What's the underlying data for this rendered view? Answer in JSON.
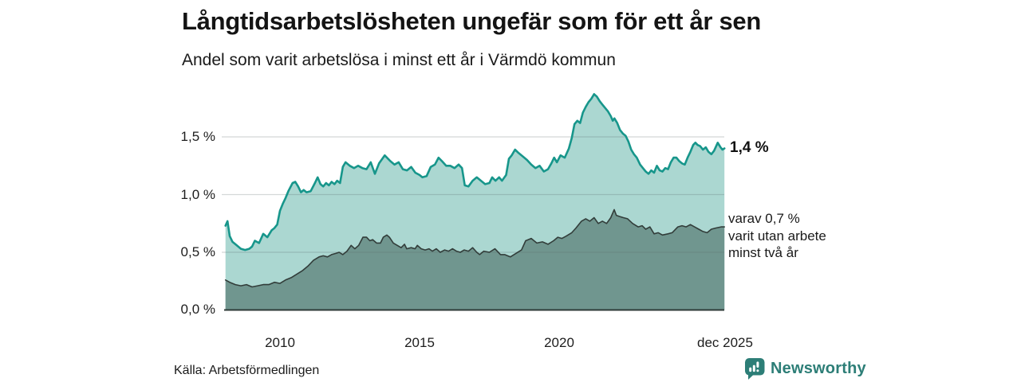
{
  "header": {
    "title": "Långtidsarbetslösheten ungefär som för ett år sen",
    "subtitle": "Andel som varit arbetslösa i minst ett år i Värmdö kommun"
  },
  "annotations": {
    "end_value": "1,4 %",
    "secondary_lines": [
      "varav 0,7 %",
      "varit utan arbete",
      "minst två år"
    ]
  },
  "footer": {
    "source": "Källa: Arbetsförmedlingen",
    "brand": "Newsworthy"
  },
  "colors": {
    "accent_line": "#17968b",
    "fill_light": "#abd7d1",
    "fill_dark": "#70968f",
    "dark_line": "#323d3a",
    "baseline": "#2e3a37",
    "grid": "#5a6a68",
    "brand": "#2d7e77"
  },
  "chart_data": {
    "type": "area",
    "title": "Långtidsarbetslösheten ungefär som för ett år sen",
    "subtitle": "Andel som varit arbetslösa i minst ett år i Värmdö kommun",
    "xlabel": "",
    "ylabel": "%",
    "x_range": [
      2008.0,
      2025.92
    ],
    "y_range": [
      0,
      1.95
    ],
    "grid": true,
    "legend_position": "none",
    "y_tick_labels": [
      "1,5 %",
      "1,0 %",
      "0,5 %",
      "0,0 %"
    ],
    "y_grid_values": [
      0.5,
      1.0,
      1.5
    ],
    "x_tick_labels": [
      "2010",
      "2015",
      "2020",
      "dec 2025"
    ],
    "x_tick_years": [
      2010,
      2015,
      2020,
      2025.92
    ],
    "series": [
      {
        "name": "Andel arbetslösa minst ett år",
        "end_value_pct": 1.4,
        "color": "#17968b",
        "fill": "#abd7d1",
        "points": [
          [
            2008.05,
            0.73
          ],
          [
            2008.12,
            0.77
          ],
          [
            2008.2,
            0.64
          ],
          [
            2008.3,
            0.59
          ],
          [
            2008.45,
            0.56
          ],
          [
            2008.6,
            0.53
          ],
          [
            2008.75,
            0.52
          ],
          [
            2008.9,
            0.53
          ],
          [
            2009.0,
            0.55
          ],
          [
            2009.1,
            0.6
          ],
          [
            2009.25,
            0.58
          ],
          [
            2009.4,
            0.66
          ],
          [
            2009.55,
            0.63
          ],
          [
            2009.7,
            0.69
          ],
          [
            2009.8,
            0.71
          ],
          [
            2009.9,
            0.74
          ],
          [
            2010.0,
            0.86
          ],
          [
            2010.1,
            0.92
          ],
          [
            2010.2,
            0.97
          ],
          [
            2010.3,
            1.03
          ],
          [
            2010.45,
            1.1
          ],
          [
            2010.55,
            1.11
          ],
          [
            2010.65,
            1.07
          ],
          [
            2010.75,
            1.02
          ],
          [
            2010.85,
            1.04
          ],
          [
            2010.95,
            1.02
          ],
          [
            2011.1,
            1.03
          ],
          [
            2011.25,
            1.1
          ],
          [
            2011.35,
            1.15
          ],
          [
            2011.45,
            1.09
          ],
          [
            2011.55,
            1.07
          ],
          [
            2011.65,
            1.1
          ],
          [
            2011.75,
            1.08
          ],
          [
            2011.85,
            1.11
          ],
          [
            2011.95,
            1.09
          ],
          [
            2012.05,
            1.12
          ],
          [
            2012.15,
            1.1
          ],
          [
            2012.25,
            1.24
          ],
          [
            2012.35,
            1.28
          ],
          [
            2012.5,
            1.25
          ],
          [
            2012.65,
            1.23
          ],
          [
            2012.8,
            1.25
          ],
          [
            2012.95,
            1.23
          ],
          [
            2013.1,
            1.22
          ],
          [
            2013.25,
            1.28
          ],
          [
            2013.4,
            1.18
          ],
          [
            2013.55,
            1.27
          ],
          [
            2013.75,
            1.34
          ],
          [
            2013.95,
            1.29
          ],
          [
            2014.1,
            1.26
          ],
          [
            2014.25,
            1.28
          ],
          [
            2014.4,
            1.22
          ],
          [
            2014.55,
            1.21
          ],
          [
            2014.7,
            1.24
          ],
          [
            2014.85,
            1.19
          ],
          [
            2015.0,
            1.17
          ],
          [
            2015.1,
            1.15
          ],
          [
            2015.25,
            1.16
          ],
          [
            2015.4,
            1.24
          ],
          [
            2015.55,
            1.26
          ],
          [
            2015.68,
            1.32
          ],
          [
            2015.8,
            1.29
          ],
          [
            2015.95,
            1.25
          ],
          [
            2016.1,
            1.25
          ],
          [
            2016.25,
            1.23
          ],
          [
            2016.4,
            1.26
          ],
          [
            2016.52,
            1.23
          ],
          [
            2016.62,
            1.08
          ],
          [
            2016.75,
            1.07
          ],
          [
            2016.9,
            1.12
          ],
          [
            2017.05,
            1.15
          ],
          [
            2017.2,
            1.12
          ],
          [
            2017.35,
            1.09
          ],
          [
            2017.5,
            1.1
          ],
          [
            2017.6,
            1.15
          ],
          [
            2017.72,
            1.12
          ],
          [
            2017.85,
            1.15
          ],
          [
            2017.95,
            1.12
          ],
          [
            2018.1,
            1.17
          ],
          [
            2018.2,
            1.31
          ],
          [
            2018.3,
            1.34
          ],
          [
            2018.42,
            1.39
          ],
          [
            2018.55,
            1.36
          ],
          [
            2018.7,
            1.33
          ],
          [
            2018.85,
            1.3
          ],
          [
            2019.0,
            1.26
          ],
          [
            2019.15,
            1.23
          ],
          [
            2019.3,
            1.25
          ],
          [
            2019.45,
            1.2
          ],
          [
            2019.6,
            1.22
          ],
          [
            2019.72,
            1.27
          ],
          [
            2019.82,
            1.32
          ],
          [
            2019.92,
            1.28
          ],
          [
            2020.05,
            1.34
          ],
          [
            2020.2,
            1.32
          ],
          [
            2020.35,
            1.4
          ],
          [
            2020.45,
            1.49
          ],
          [
            2020.55,
            1.61
          ],
          [
            2020.65,
            1.64
          ],
          [
            2020.75,
            1.62
          ],
          [
            2020.85,
            1.71
          ],
          [
            2020.95,
            1.76
          ],
          [
            2021.05,
            1.8
          ],
          [
            2021.15,
            1.83
          ],
          [
            2021.25,
            1.87
          ],
          [
            2021.35,
            1.85
          ],
          [
            2021.45,
            1.81
          ],
          [
            2021.55,
            1.78
          ],
          [
            2021.65,
            1.75
          ],
          [
            2021.75,
            1.72
          ],
          [
            2021.85,
            1.68
          ],
          [
            2021.92,
            1.64
          ],
          [
            2021.98,
            1.66
          ],
          [
            2022.08,
            1.62
          ],
          [
            2022.18,
            1.56
          ],
          [
            2022.28,
            1.53
          ],
          [
            2022.38,
            1.51
          ],
          [
            2022.48,
            1.46
          ],
          [
            2022.58,
            1.39
          ],
          [
            2022.68,
            1.35
          ],
          [
            2022.78,
            1.32
          ],
          [
            2022.9,
            1.26
          ],
          [
            2023.0,
            1.23
          ],
          [
            2023.1,
            1.2
          ],
          [
            2023.2,
            1.18
          ],
          [
            2023.3,
            1.21
          ],
          [
            2023.4,
            1.19
          ],
          [
            2023.5,
            1.25
          ],
          [
            2023.6,
            1.21
          ],
          [
            2023.7,
            1.2
          ],
          [
            2023.8,
            1.23
          ],
          [
            2023.9,
            1.22
          ],
          [
            2024.0,
            1.28
          ],
          [
            2024.1,
            1.32
          ],
          [
            2024.2,
            1.32
          ],
          [
            2024.3,
            1.29
          ],
          [
            2024.4,
            1.27
          ],
          [
            2024.5,
            1.26
          ],
          [
            2024.6,
            1.32
          ],
          [
            2024.7,
            1.37
          ],
          [
            2024.8,
            1.43
          ],
          [
            2024.88,
            1.45
          ],
          [
            2024.96,
            1.43
          ],
          [
            2025.05,
            1.42
          ],
          [
            2025.15,
            1.39
          ],
          [
            2025.25,
            1.41
          ],
          [
            2025.35,
            1.37
          ],
          [
            2025.45,
            1.35
          ],
          [
            2025.55,
            1.38
          ],
          [
            2025.68,
            1.45
          ],
          [
            2025.78,
            1.41
          ],
          [
            2025.85,
            1.39
          ],
          [
            2025.92,
            1.4
          ]
        ]
      },
      {
        "name": "varav utan arbete minst två år",
        "end_value_pct": 0.7,
        "color": "#323d3a",
        "fill": "#70968f",
        "points": [
          [
            2008.05,
            0.26
          ],
          [
            2008.2,
            0.24
          ],
          [
            2008.4,
            0.22
          ],
          [
            2008.6,
            0.21
          ],
          [
            2008.8,
            0.22
          ],
          [
            2009.0,
            0.2
          ],
          [
            2009.2,
            0.21
          ],
          [
            2009.4,
            0.22
          ],
          [
            2009.6,
            0.22
          ],
          [
            2009.8,
            0.24
          ],
          [
            2010.0,
            0.23
          ],
          [
            2010.2,
            0.26
          ],
          [
            2010.4,
            0.28
          ],
          [
            2010.6,
            0.31
          ],
          [
            2010.8,
            0.34
          ],
          [
            2011.0,
            0.38
          ],
          [
            2011.2,
            0.43
          ],
          [
            2011.4,
            0.46
          ],
          [
            2011.55,
            0.47
          ],
          [
            2011.7,
            0.46
          ],
          [
            2011.85,
            0.48
          ],
          [
            2012.0,
            0.49
          ],
          [
            2012.12,
            0.5
          ],
          [
            2012.25,
            0.48
          ],
          [
            2012.4,
            0.51
          ],
          [
            2012.55,
            0.56
          ],
          [
            2012.68,
            0.53
          ],
          [
            2012.82,
            0.56
          ],
          [
            2012.97,
            0.63
          ],
          [
            2013.1,
            0.63
          ],
          [
            2013.22,
            0.6
          ],
          [
            2013.32,
            0.61
          ],
          [
            2013.46,
            0.58
          ],
          [
            2013.6,
            0.58
          ],
          [
            2013.7,
            0.63
          ],
          [
            2013.83,
            0.65
          ],
          [
            2013.92,
            0.63
          ],
          [
            2014.06,
            0.58
          ],
          [
            2014.2,
            0.56
          ],
          [
            2014.34,
            0.54
          ],
          [
            2014.46,
            0.57
          ],
          [
            2014.54,
            0.53
          ],
          [
            2014.7,
            0.54
          ],
          [
            2014.84,
            0.53
          ],
          [
            2014.92,
            0.56
          ],
          [
            2015.06,
            0.53
          ],
          [
            2015.2,
            0.52
          ],
          [
            2015.34,
            0.53
          ],
          [
            2015.46,
            0.51
          ],
          [
            2015.6,
            0.53
          ],
          [
            2015.74,
            0.5
          ],
          [
            2015.9,
            0.52
          ],
          [
            2016.04,
            0.51
          ],
          [
            2016.18,
            0.53
          ],
          [
            2016.32,
            0.51
          ],
          [
            2016.46,
            0.5
          ],
          [
            2016.6,
            0.52
          ],
          [
            2016.75,
            0.51
          ],
          [
            2016.9,
            0.54
          ],
          [
            2017.05,
            0.5
          ],
          [
            2017.15,
            0.48
          ],
          [
            2017.3,
            0.51
          ],
          [
            2017.5,
            0.5
          ],
          [
            2017.7,
            0.53
          ],
          [
            2017.9,
            0.48
          ],
          [
            2018.05,
            0.48
          ],
          [
            2018.25,
            0.46
          ],
          [
            2018.45,
            0.49
          ],
          [
            2018.65,
            0.52
          ],
          [
            2018.8,
            0.6
          ],
          [
            2019.0,
            0.62
          ],
          [
            2019.2,
            0.58
          ],
          [
            2019.4,
            0.59
          ],
          [
            2019.6,
            0.57
          ],
          [
            2019.8,
            0.6
          ],
          [
            2019.95,
            0.63
          ],
          [
            2020.1,
            0.62
          ],
          [
            2020.25,
            0.64
          ],
          [
            2020.45,
            0.67
          ],
          [
            2020.6,
            0.71
          ],
          [
            2020.8,
            0.77
          ],
          [
            2020.95,
            0.79
          ],
          [
            2021.1,
            0.77
          ],
          [
            2021.25,
            0.8
          ],
          [
            2021.4,
            0.75
          ],
          [
            2021.55,
            0.77
          ],
          [
            2021.7,
            0.75
          ],
          [
            2021.85,
            0.8
          ],
          [
            2021.97,
            0.87
          ],
          [
            2022.05,
            0.82
          ],
          [
            2022.17,
            0.81
          ],
          [
            2022.3,
            0.8
          ],
          [
            2022.45,
            0.79
          ],
          [
            2022.63,
            0.75
          ],
          [
            2022.83,
            0.72
          ],
          [
            2022.97,
            0.73
          ],
          [
            2023.1,
            0.7
          ],
          [
            2023.25,
            0.72
          ],
          [
            2023.4,
            0.66
          ],
          [
            2023.55,
            0.67
          ],
          [
            2023.7,
            0.65
          ],
          [
            2023.9,
            0.66
          ],
          [
            2024.05,
            0.67
          ],
          [
            2024.25,
            0.72
          ],
          [
            2024.4,
            0.73
          ],
          [
            2024.55,
            0.72
          ],
          [
            2024.7,
            0.74
          ],
          [
            2024.85,
            0.72
          ],
          [
            2025.0,
            0.7
          ],
          [
            2025.15,
            0.68
          ],
          [
            2025.3,
            0.67
          ],
          [
            2025.45,
            0.7
          ],
          [
            2025.6,
            0.71
          ],
          [
            2025.8,
            0.72
          ],
          [
            2025.92,
            0.72
          ]
        ]
      }
    ]
  }
}
